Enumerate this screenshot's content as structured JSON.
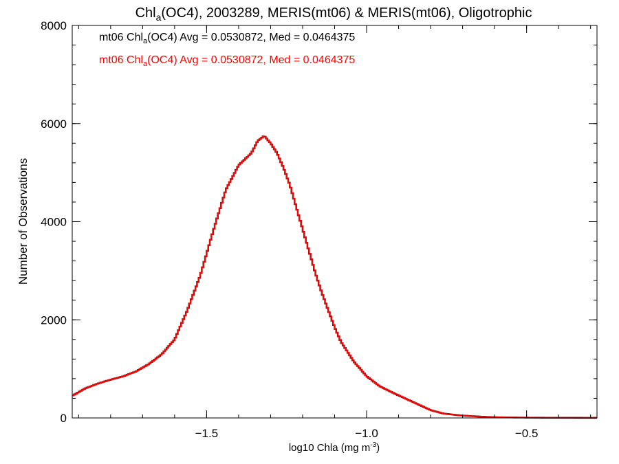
{
  "chart_data": {
    "type": "line",
    "title": {
      "prefix": "Chl",
      "sub": "a",
      "suffix": "(OC4), 2003289, MERIS(mt06) & MERIS(mt06), Oligotrophic"
    },
    "xlabel": {
      "prefix": "log10 Chla (mg m",
      "sup": "-3",
      "suffix": ")"
    },
    "ylabel": "Number of Observations",
    "xlim": [
      -1.92,
      -0.28
    ],
    "ylim": [
      0,
      8000
    ],
    "x_ticks": [
      -1.5,
      -1.0,
      -0.5
    ],
    "x_tick_labels": [
      "−1.5",
      "−1.0",
      "−0.5"
    ],
    "y_ticks": [
      0,
      2000,
      4000,
      6000,
      8000
    ],
    "y_tick_labels": [
      "0",
      "2000",
      "4000",
      "6000",
      "8000"
    ],
    "step": "histogram",
    "series": [
      {
        "label_prefix": "mt06 Chl",
        "label_sub": "a",
        "label_suffix": "(OC4) Avg = 0.0530872, Med = 0.0464375",
        "color": "#000000",
        "x": [
          -1.92,
          -1.88,
          -1.84,
          -1.8,
          -1.76,
          -1.72,
          -1.68,
          -1.64,
          -1.6,
          -1.56,
          -1.52,
          -1.48,
          -1.44,
          -1.4,
          -1.36,
          -1.34,
          -1.32,
          -1.3,
          -1.28,
          -1.26,
          -1.24,
          -1.22,
          -1.2,
          -1.18,
          -1.16,
          -1.14,
          -1.12,
          -1.1,
          -1.08,
          -1.04,
          -1.0,
          -0.96,
          -0.92,
          -0.88,
          -0.84,
          -0.8,
          -0.76,
          -0.72,
          -0.68,
          -0.64,
          -0.6,
          -0.56,
          -0.52,
          -0.48,
          -0.44,
          -0.4,
          -0.36,
          -0.32,
          -0.28
        ],
        "values": [
          450,
          600,
          700,
          780,
          850,
          950,
          1100,
          1300,
          1600,
          2200,
          2900,
          3800,
          4650,
          5150,
          5400,
          5650,
          5750,
          5600,
          5400,
          5100,
          4750,
          4300,
          3850,
          3400,
          2950,
          2550,
          2200,
          1850,
          1550,
          1150,
          850,
          650,
          520,
          400,
          280,
          160,
          90,
          60,
          40,
          25,
          15,
          10,
          8,
          6,
          5,
          4,
          4,
          3,
          3
        ]
      },
      {
        "label_prefix": "mt06 Chl",
        "label_sub": "a",
        "label_suffix": "(OC4) Avg = 0.0530872, Med = 0.0464375",
        "color": "#ff0000",
        "x": [
          -1.92,
          -1.88,
          -1.84,
          -1.8,
          -1.76,
          -1.72,
          -1.68,
          -1.64,
          -1.6,
          -1.56,
          -1.52,
          -1.48,
          -1.44,
          -1.4,
          -1.36,
          -1.34,
          -1.32,
          -1.3,
          -1.28,
          -1.26,
          -1.24,
          -1.22,
          -1.2,
          -1.18,
          -1.16,
          -1.14,
          -1.12,
          -1.1,
          -1.08,
          -1.04,
          -1.0,
          -0.96,
          -0.92,
          -0.88,
          -0.84,
          -0.8,
          -0.76,
          -0.72,
          -0.68,
          -0.64,
          -0.6,
          -0.56,
          -0.52,
          -0.48,
          -0.44,
          -0.4,
          -0.36,
          -0.32,
          -0.28
        ],
        "values": [
          450,
          600,
          700,
          780,
          850,
          950,
          1100,
          1300,
          1600,
          2200,
          2900,
          3800,
          4650,
          5150,
          5400,
          5650,
          5750,
          5600,
          5400,
          5100,
          4750,
          4300,
          3850,
          3400,
          2950,
          2550,
          2200,
          1850,
          1550,
          1150,
          850,
          650,
          520,
          400,
          280,
          160,
          90,
          60,
          40,
          25,
          15,
          10,
          8,
          6,
          5,
          4,
          4,
          3,
          3
        ]
      }
    ]
  }
}
